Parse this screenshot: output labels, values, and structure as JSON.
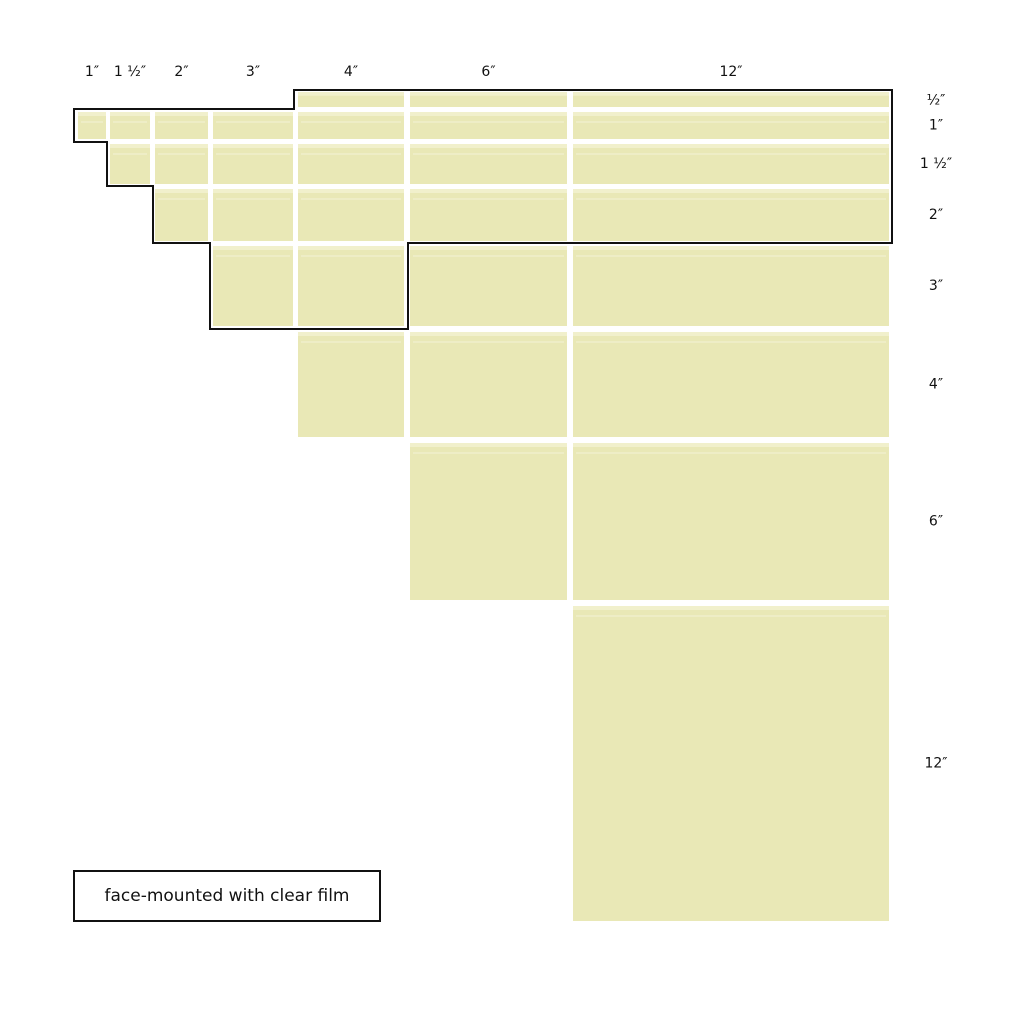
{
  "columns": [
    "1″",
    "1 ½″",
    "2″",
    "3″",
    "4″",
    "6″",
    "12″"
  ],
  "rows": [
    "½″",
    "1″",
    "1 ½″",
    "2″",
    "3″",
    "4″",
    "6″",
    "12″"
  ],
  "legend": "face-mounted with clear film"
}
